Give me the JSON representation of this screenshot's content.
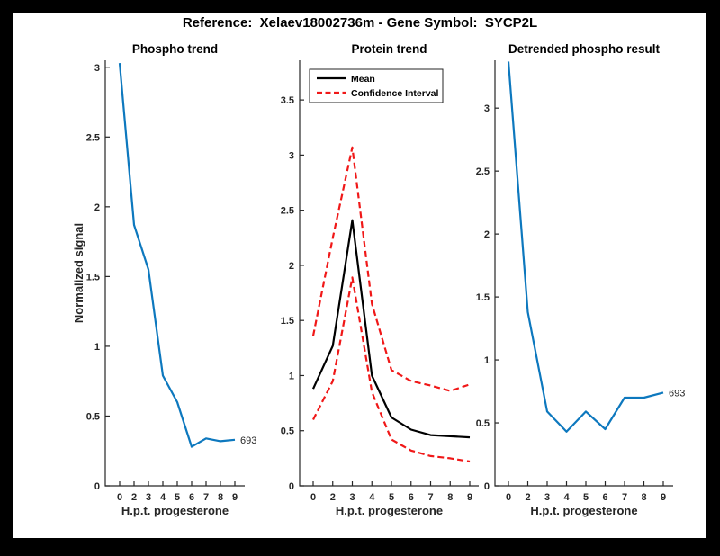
{
  "figure": {
    "title": "Reference:  Xelaev18002736m - Gene Symbol:  SYCP2L"
  },
  "colors": {
    "blue": "#0d78be",
    "red": "#f01818",
    "black": "#000000",
    "axis": "#262626"
  },
  "chart_data": [
    {
      "type": "line",
      "title": "Phospho trend",
      "xlabel": "H.p.t. progesterone",
      "ylabel": "Normalized signal",
      "xticklabels": [
        "0",
        "2",
        "3",
        "4",
        "5",
        "6",
        "7",
        "8",
        "9"
      ],
      "yticks": [
        0,
        0.5,
        1,
        1.5,
        2,
        2.5,
        3
      ],
      "ylim": [
        0,
        3.05
      ],
      "grid": false,
      "series": [
        {
          "name": "phospho-signal",
          "color": "blue",
          "style": "solid",
          "values": [
            3.03,
            1.87,
            1.55,
            0.79,
            0.6,
            0.28,
            0.34,
            0.32,
            0.33
          ]
        }
      ],
      "end_label": "693"
    },
    {
      "type": "line",
      "title": "Protein trend",
      "xlabel": "H.p.t. progesterone",
      "ylabel": "",
      "xticklabels": [
        "0",
        "2",
        "3",
        "4",
        "5",
        "6",
        "7",
        "8",
        "9"
      ],
      "yticks": [
        0,
        0.5,
        1,
        1.5,
        2,
        2.5,
        3,
        3.5
      ],
      "ylim": [
        0,
        3.86
      ],
      "grid": false,
      "legend": {
        "position": "north",
        "entries": [
          {
            "label": "Mean",
            "color": "black",
            "style": "solid"
          },
          {
            "label": "Confidence Interval",
            "color": "red",
            "style": "dashed"
          }
        ]
      },
      "series": [
        {
          "name": "ci-upper",
          "color": "red",
          "style": "dashed",
          "values": [
            1.36,
            2.25,
            3.07,
            1.65,
            1.05,
            0.95,
            0.91,
            0.86,
            0.92
          ]
        },
        {
          "name": "ci-lower",
          "color": "red",
          "style": "dashed",
          "values": [
            0.6,
            0.95,
            1.89,
            0.85,
            0.42,
            0.32,
            0.27,
            0.25,
            0.22
          ]
        },
        {
          "name": "mean",
          "color": "black",
          "style": "solid",
          "values": [
            0.88,
            1.27,
            2.41,
            1.0,
            0.62,
            0.51,
            0.46,
            0.45,
            0.44
          ]
        }
      ]
    },
    {
      "type": "line",
      "title": "Detrended phospho result",
      "xlabel": "H.p.t. progesterone",
      "ylabel": "",
      "xticklabels": [
        "0",
        "2",
        "3",
        "4",
        "5",
        "6",
        "7",
        "8",
        "9"
      ],
      "yticks": [
        0,
        0.5,
        1,
        1.5,
        2,
        2.5,
        3
      ],
      "ylim": [
        0,
        3.38
      ],
      "grid": false,
      "series": [
        {
          "name": "detrended-phospho",
          "color": "blue",
          "style": "solid",
          "values": [
            3.37,
            1.38,
            0.59,
            0.43,
            0.59,
            0.45,
            0.7,
            0.7,
            0.74
          ]
        }
      ],
      "end_label": "693"
    }
  ]
}
